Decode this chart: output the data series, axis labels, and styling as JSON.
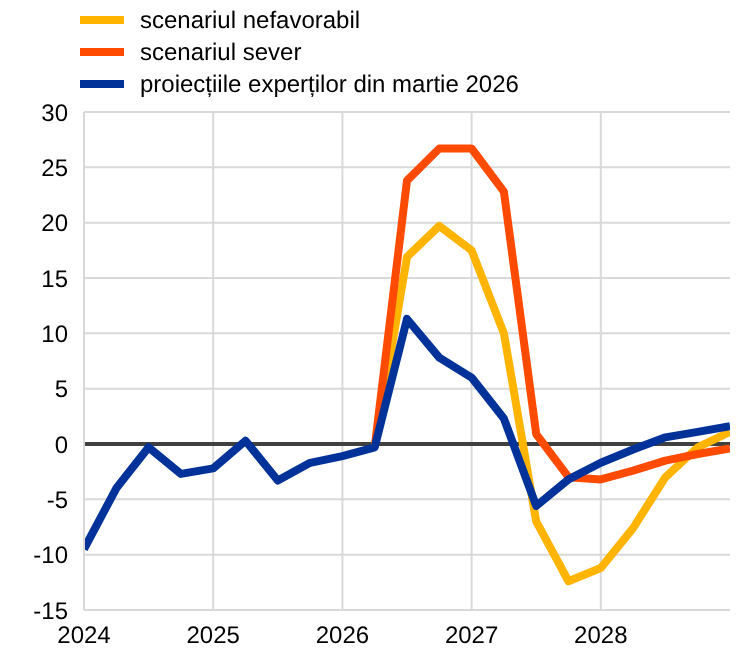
{
  "chart_data": {
    "type": "line",
    "x": [
      2024,
      2024.25,
      2024.5,
      2024.75,
      2025,
      2025.25,
      2025.5,
      2025.75,
      2026,
      2026.25,
      2026.5,
      2026.75,
      2027,
      2027.25,
      2027.5,
      2027.75,
      2028,
      2028.25,
      2028.5,
      2028.75,
      2029
    ],
    "series": [
      {
        "name": "scenariul nefavorabil",
        "color": "#ffb400",
        "values": [
          null,
          null,
          null,
          null,
          null,
          null,
          null,
          null,
          null,
          -0.3,
          16.9,
          19.7,
          17.5,
          10.0,
          -7.0,
          -12.4,
          -11.2,
          -7.6,
          -3.0,
          -0.3,
          1.1
        ]
      },
      {
        "name": "scenariul sever",
        "color": "#ff4b00",
        "values": [
          null,
          null,
          null,
          null,
          null,
          null,
          null,
          null,
          null,
          -0.3,
          23.8,
          26.7,
          26.7,
          22.8,
          0.9,
          -3.0,
          -3.2,
          -2.4,
          -1.5,
          -0.9,
          -0.4
        ]
      },
      {
        "name": "proiecțiile experților din martie 2026",
        "color": "#003299",
        "values": [
          -9.5,
          -4.0,
          -0.3,
          -2.7,
          -2.2,
          0.3,
          -3.3,
          -1.7,
          -1.1,
          -0.3,
          11.3,
          7.8,
          6.0,
          2.3,
          -5.6,
          -3.2,
          -1.7,
          -0.5,
          0.6,
          1.1,
          1.6
        ]
      }
    ],
    "xlim": [
      2024,
      2029
    ],
    "xticks": [
      2024,
      2025,
      2026,
      2027,
      2028
    ],
    "ylim": [
      -15,
      30
    ],
    "yticks": [
      -15,
      -10,
      -5,
      0,
      5,
      10,
      15,
      20,
      25,
      30
    ],
    "ref_lines": [
      {
        "axis": "y",
        "value": 0,
        "color": "#404040"
      }
    ],
    "grid": true,
    "legend": "top left",
    "marker": "none",
    "line_style": "solid"
  }
}
